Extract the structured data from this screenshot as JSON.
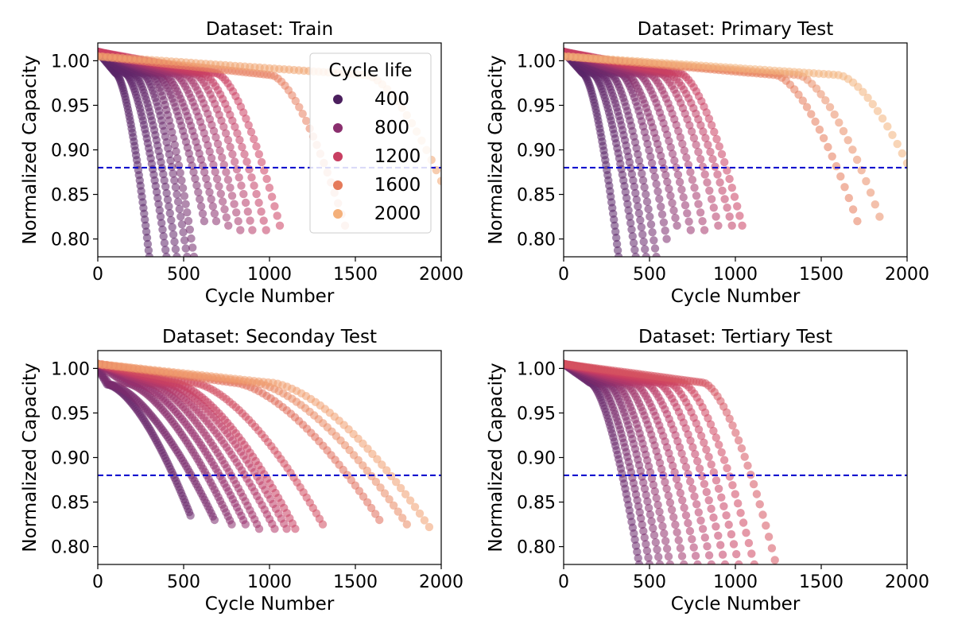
{
  "figure": {
    "ylabel": "Normalized Capacity",
    "xlabel": "Cycle Number",
    "reference_line": {
      "y": 0.88,
      "color": "#0000cc",
      "style": "dashed"
    },
    "colormap": [
      "#4b1f5e",
      "#8a2f6e",
      "#c83f62",
      "#e57a5a",
      "#f4b07a"
    ]
  },
  "chart_data": [
    {
      "type": "scatter",
      "title": "Dataset: Train",
      "xlim": [
        0,
        2000
      ],
      "ylim": [
        0.78,
        1.02
      ],
      "xticks": [
        0,
        500,
        1000,
        1500,
        2000
      ],
      "yticks": [
        0.8,
        0.85,
        0.9,
        0.95,
        1.0
      ],
      "legend": {
        "title": "Cycle life",
        "placement": "top-right",
        "entries": [
          {
            "label": "400",
            "color": "#4b1f5e"
          },
          {
            "label": "800",
            "color": "#8a2f6e"
          },
          {
            "label": "1200",
            "color": "#c83f62"
          },
          {
            "label": "1600",
            "color": "#e57a5a"
          },
          {
            "label": "2000",
            "color": "#f4b07a"
          }
        ]
      },
      "series": [
        {
          "end_cycle": 300,
          "end_capacity": 0.78,
          "knee": 0.35,
          "start": 1.01,
          "color": "#5a2468"
        },
        {
          "end_cycle": 400,
          "end_capacity": 0.78,
          "knee": 0.4,
          "start": 1.01,
          "color": "#5e2569"
        },
        {
          "end_cycle": 460,
          "end_capacity": 0.78,
          "knee": 0.45,
          "start": 1.01,
          "color": "#63266a"
        },
        {
          "end_cycle": 520,
          "end_capacity": 0.78,
          "knee": 0.5,
          "start": 1.01,
          "color": "#6a286b"
        },
        {
          "end_cycle": 560,
          "end_capacity": 0.78,
          "knee": 0.55,
          "start": 1.01,
          "color": "#72296c"
        },
        {
          "end_cycle": 620,
          "end_capacity": 0.82,
          "knee": 0.55,
          "start": 1.01,
          "color": "#7e2d6d"
        },
        {
          "end_cycle": 690,
          "end_capacity": 0.82,
          "knee": 0.55,
          "start": 1.01,
          "color": "#8a2f6e"
        },
        {
          "end_cycle": 760,
          "end_capacity": 0.815,
          "knee": 0.58,
          "start": 1.01,
          "color": "#9a336d"
        },
        {
          "end_cycle": 830,
          "end_capacity": 0.81,
          "knee": 0.6,
          "start": 1.01,
          "color": "#a8376b"
        },
        {
          "end_cycle": 900,
          "end_capacity": 0.81,
          "knee": 0.62,
          "start": 1.01,
          "color": "#b63a67"
        },
        {
          "end_cycle": 980,
          "end_capacity": 0.81,
          "knee": 0.62,
          "start": 1.01,
          "color": "#c23d64"
        },
        {
          "end_cycle": 1060,
          "end_capacity": 0.815,
          "knee": 0.65,
          "start": 1.01,
          "color": "#cc4062"
        },
        {
          "end_cycle": 1440,
          "end_capacity": 0.815,
          "knee": 0.7,
          "start": 1.005,
          "color": "#e88060"
        },
        {
          "end_cycle": 2000,
          "end_capacity": 0.865,
          "knee": 0.78,
          "start": 1.005,
          "color": "#f0a46f"
        }
      ]
    },
    {
      "type": "scatter",
      "title": "Dataset: Primary Test",
      "xlim": [
        0,
        2000
      ],
      "ylim": [
        0.78,
        1.02
      ],
      "xticks": [
        0,
        500,
        1000,
        1500,
        2000
      ],
      "yticks": [
        0.8,
        0.85,
        0.9,
        0.95,
        1.0
      ],
      "series": [
        {
          "end_cycle": 320,
          "end_capacity": 0.78,
          "knee": 0.35,
          "start": 1.01,
          "color": "#5a2468"
        },
        {
          "end_cycle": 420,
          "end_capacity": 0.78,
          "knee": 0.4,
          "start": 1.01,
          "color": "#61266a"
        },
        {
          "end_cycle": 480,
          "end_capacity": 0.78,
          "knee": 0.45,
          "start": 1.01,
          "color": "#68276b"
        },
        {
          "end_cycle": 540,
          "end_capacity": 0.78,
          "knee": 0.5,
          "start": 1.01,
          "color": "#70296c"
        },
        {
          "end_cycle": 600,
          "end_capacity": 0.8,
          "knee": 0.55,
          "start": 1.01,
          "color": "#7c2c6d"
        },
        {
          "end_cycle": 660,
          "end_capacity": 0.815,
          "knee": 0.55,
          "start": 1.01,
          "color": "#882f6e"
        },
        {
          "end_cycle": 740,
          "end_capacity": 0.81,
          "knee": 0.58,
          "start": 1.01,
          "color": "#96326d"
        },
        {
          "end_cycle": 820,
          "end_capacity": 0.81,
          "knee": 0.6,
          "start": 1.01,
          "color": "#a6366b"
        },
        {
          "end_cycle": 900,
          "end_capacity": 0.815,
          "knee": 0.62,
          "start": 1.01,
          "color": "#b43a68"
        },
        {
          "end_cycle": 980,
          "end_capacity": 0.815,
          "knee": 0.62,
          "start": 1.01,
          "color": "#c03d65"
        },
        {
          "end_cycle": 1040,
          "end_capacity": 0.815,
          "knee": 0.65,
          "start": 1.01,
          "color": "#ca4062"
        },
        {
          "end_cycle": 1710,
          "end_capacity": 0.82,
          "knee": 0.72,
          "start": 1.005,
          "color": "#e57a5a"
        },
        {
          "end_cycle": 1840,
          "end_capacity": 0.825,
          "knee": 0.74,
          "start": 1.005,
          "color": "#e98d66"
        },
        {
          "end_cycle": 2000,
          "end_capacity": 0.885,
          "knee": 0.8,
          "start": 1.005,
          "color": "#f2b27c"
        }
      ]
    },
    {
      "type": "scatter",
      "title": "Dataset: Seconday Test",
      "xlim": [
        0,
        2000
      ],
      "ylim": [
        0.78,
        1.02
      ],
      "xticks": [
        0,
        500,
        1000,
        1500,
        2000
      ],
      "yticks": [
        0.8,
        0.85,
        0.9,
        0.95,
        1.0
      ],
      "series": [
        {
          "end_cycle": 540,
          "end_capacity": 0.835,
          "knee": 0.1,
          "start": 1.0,
          "color": "#6a286b"
        },
        {
          "end_cycle": 680,
          "end_capacity": 0.83,
          "knee": 0.1,
          "start": 1.0,
          "color": "#7a2c6d"
        },
        {
          "end_cycle": 780,
          "end_capacity": 0.825,
          "knee": 0.2,
          "start": 1.005,
          "color": "#8a2f6e"
        },
        {
          "end_cycle": 860,
          "end_capacity": 0.825,
          "knee": 0.25,
          "start": 1.005,
          "color": "#982f6d"
        },
        {
          "end_cycle": 940,
          "end_capacity": 0.82,
          "knee": 0.3,
          "start": 1.005,
          "color": "#a4346c"
        },
        {
          "end_cycle": 1030,
          "end_capacity": 0.82,
          "knee": 0.32,
          "start": 1.005,
          "color": "#b23869"
        },
        {
          "end_cycle": 1100,
          "end_capacity": 0.82,
          "knee": 0.35,
          "start": 1.005,
          "color": "#bf3c66"
        },
        {
          "end_cycle": 1150,
          "end_capacity": 0.82,
          "knee": 0.38,
          "start": 1.005,
          "color": "#c83f62"
        },
        {
          "end_cycle": 1310,
          "end_capacity": 0.825,
          "knee": 0.42,
          "start": 1.005,
          "color": "#d24d60"
        },
        {
          "end_cycle": 1640,
          "end_capacity": 0.83,
          "knee": 0.48,
          "start": 1.005,
          "color": "#e06d5b"
        },
        {
          "end_cycle": 1800,
          "end_capacity": 0.825,
          "knee": 0.5,
          "start": 1.005,
          "color": "#e98a65"
        },
        {
          "end_cycle": 1930,
          "end_capacity": 0.822,
          "knee": 0.52,
          "start": 1.005,
          "color": "#f09f6f"
        }
      ]
    },
    {
      "type": "scatter",
      "title": "Dataset: Tertiary Test",
      "xlim": [
        0,
        2000
      ],
      "ylim": [
        0.78,
        1.02
      ],
      "xticks": [
        0,
        500,
        1000,
        1500,
        2000
      ],
      "yticks": [
        0.8,
        0.85,
        0.9,
        0.95,
        1.0
      ],
      "series": [
        {
          "end_cycle": 440,
          "end_capacity": 0.78,
          "knee": 0.35,
          "start": 1.005,
          "color": "#6a286b"
        },
        {
          "end_cycle": 500,
          "end_capacity": 0.78,
          "knee": 0.4,
          "start": 1.005,
          "color": "#78296c"
        },
        {
          "end_cycle": 560,
          "end_capacity": 0.78,
          "knee": 0.45,
          "start": 1.005,
          "color": "#842d6d"
        },
        {
          "end_cycle": 620,
          "end_capacity": 0.78,
          "knee": 0.48,
          "start": 1.005,
          "color": "#92316d"
        },
        {
          "end_cycle": 700,
          "end_capacity": 0.78,
          "knee": 0.5,
          "start": 1.005,
          "color": "#a0346c"
        },
        {
          "end_cycle": 780,
          "end_capacity": 0.78,
          "knee": 0.52,
          "start": 1.005,
          "color": "#ae376a"
        },
        {
          "end_cycle": 860,
          "end_capacity": 0.78,
          "knee": 0.55,
          "start": 1.005,
          "color": "#b93a67"
        },
        {
          "end_cycle": 940,
          "end_capacity": 0.78,
          "knee": 0.58,
          "start": 1.005,
          "color": "#c23d64"
        },
        {
          "end_cycle": 1020,
          "end_capacity": 0.78,
          "knee": 0.6,
          "start": 1.005,
          "color": "#c83f62"
        },
        {
          "end_cycle": 1110,
          "end_capacity": 0.78,
          "knee": 0.62,
          "start": 1.005,
          "color": "#cf4561"
        },
        {
          "end_cycle": 1230,
          "end_capacity": 0.785,
          "knee": 0.66,
          "start": 1.005,
          "color": "#d65460"
        }
      ]
    }
  ]
}
